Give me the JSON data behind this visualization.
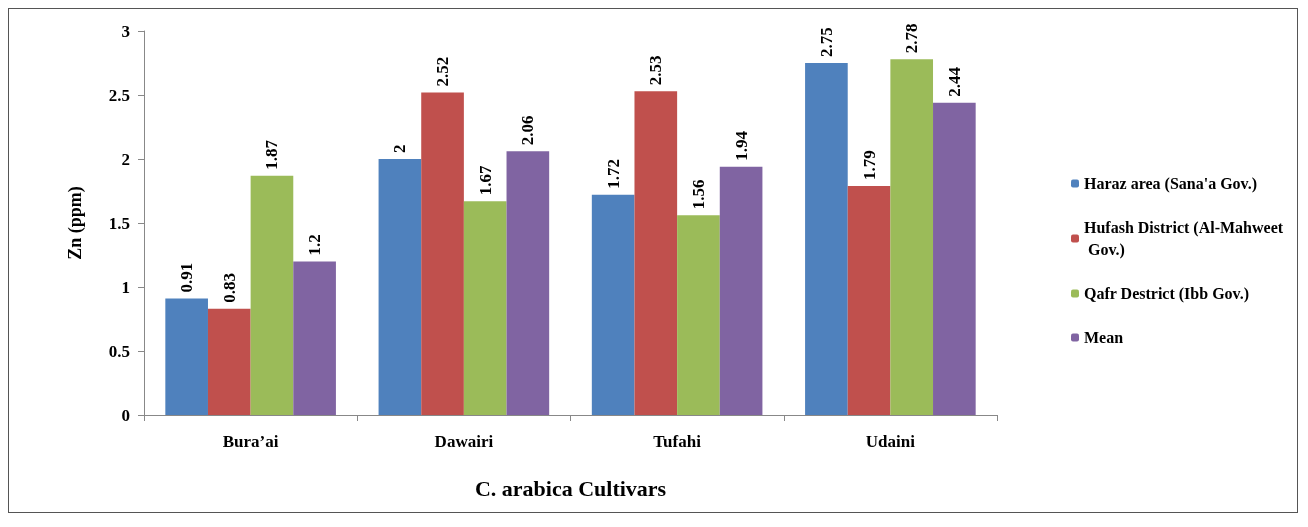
{
  "chart_data": {
    "type": "bar",
    "xlabel": "C. arabica Cultivars",
    "ylabel": "Zn (ppm)",
    "categories": [
      "Bura’ai",
      "Dawairi",
      "Tufahi",
      "Udaini"
    ],
    "series": [
      {
        "name": "Haraz area (Sana'a Gov.)",
        "color": "#4f81bd",
        "values": [
          0.91,
          2,
          1.72,
          2.75
        ]
      },
      {
        "name": "Hufash District (Al-Mahweet Gov.)",
        "color": "#c0504d",
        "values": [
          0.83,
          2.52,
          2.53,
          1.79
        ]
      },
      {
        "name": "Qafr Destrict (Ibb Gov.)",
        "color": "#9bbb59",
        "values": [
          1.87,
          1.67,
          1.56,
          2.78
        ]
      },
      {
        "name": "Mean",
        "color": "#8064a2",
        "values": [
          1.2,
          2.06,
          1.94,
          2.44
        ]
      }
    ],
    "ylim": [
      0,
      3
    ],
    "yticks": [
      0,
      0.5,
      1,
      1.5,
      2,
      2.5,
      3
    ],
    "grid": false,
    "legend": "right",
    "data_labels": true
  }
}
